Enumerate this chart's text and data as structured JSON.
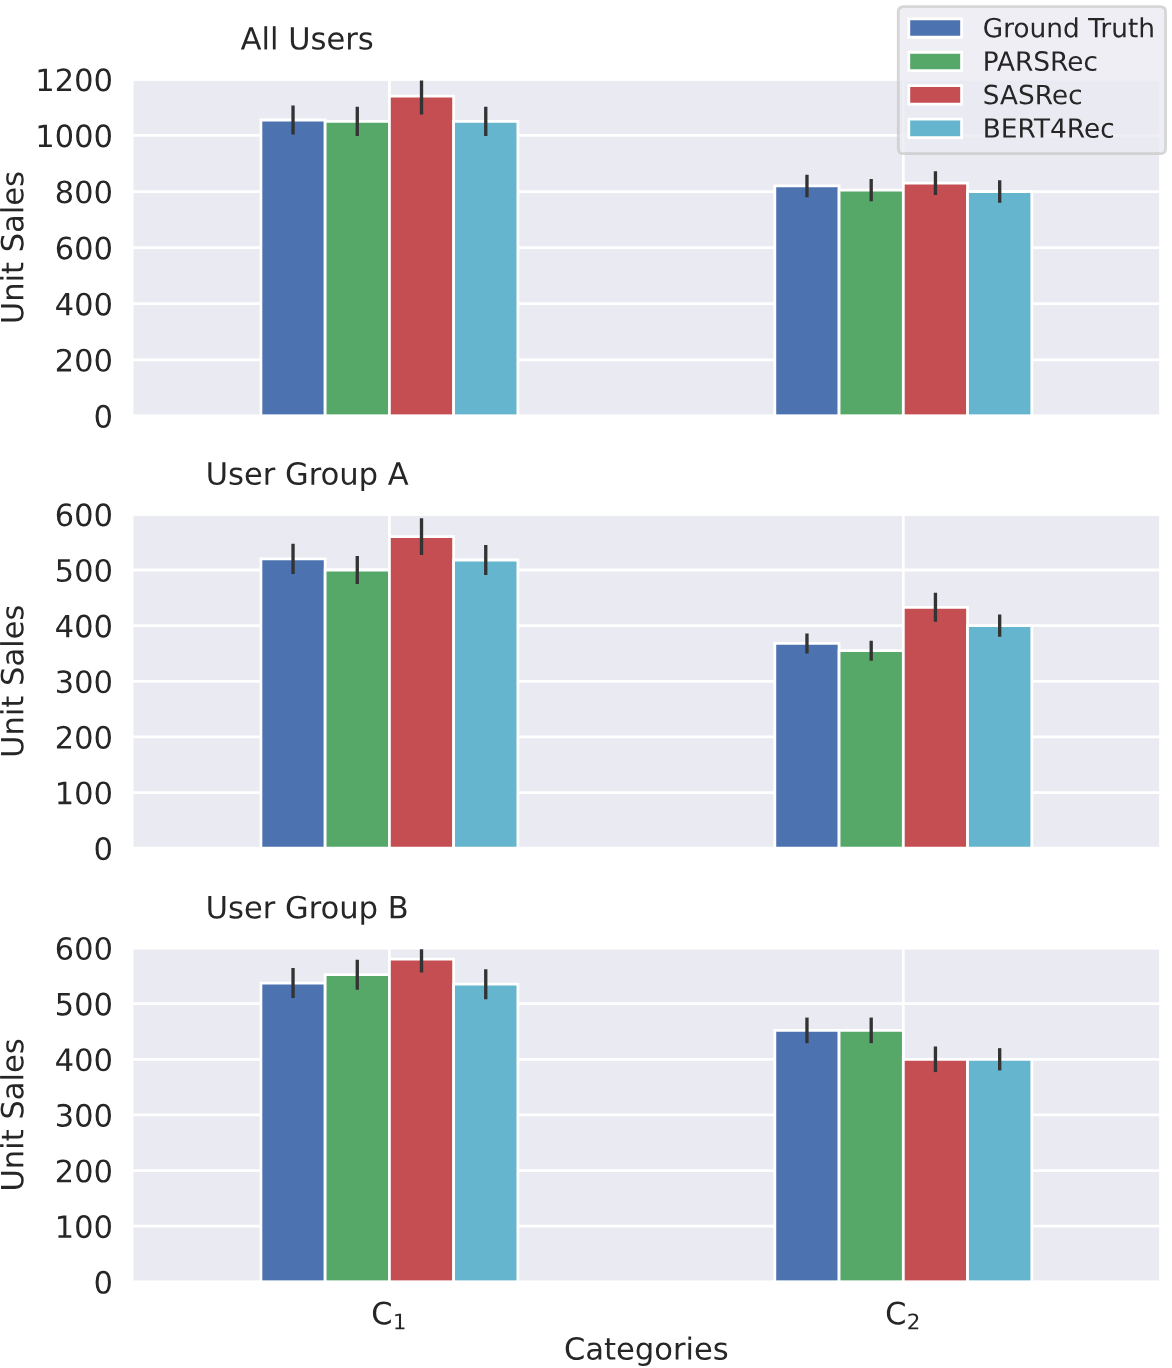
{
  "chart_data": [
    {
      "type": "bar",
      "title": "All Users",
      "ylabel": "Unit Sales",
      "categories": [
        null,
        null
      ],
      "ylim": [
        0,
        1200
      ],
      "yticks": [
        0,
        200,
        400,
        600,
        800,
        1000,
        1200
      ],
      "grid": true,
      "legend": "top right",
      "tick_labels": "y",
      "series": [
        {
          "name": "Ground Truth",
          "color": "#4c72b0",
          "values": [
            1055,
            820
          ],
          "errors": [
            52,
            40
          ]
        },
        {
          "name": "PARSRec",
          "color": "#55a868",
          "values": [
            1050,
            805
          ],
          "errors": [
            52,
            40
          ]
        },
        {
          "name": "SASRec",
          "color": "#c44e52",
          "values": [
            1140,
            830
          ],
          "errors": [
            65,
            42
          ]
        },
        {
          "name": "BERT4Rec",
          "color": "#64b5cd",
          "values": [
            1050,
            800
          ],
          "errors": [
            52,
            40
          ]
        }
      ]
    },
    {
      "type": "bar",
      "title": "User Group A",
      "ylabel": "Unit Sales",
      "categories": [
        null,
        null
      ],
      "ylim": [
        0,
        600
      ],
      "yticks": [
        0,
        100,
        200,
        300,
        400,
        500,
        600
      ],
      "grid": true,
      "tick_labels": "y",
      "series": [
        {
          "color": "#4c72b0",
          "values": [
            520,
            368
          ],
          "errors": [
            27,
            18
          ]
        },
        {
          "color": "#55a868",
          "values": [
            500,
            355
          ],
          "errors": [
            25,
            18
          ]
        },
        {
          "color": "#c44e52",
          "values": [
            560,
            433
          ],
          "errors": [
            33,
            26
          ]
        },
        {
          "color": "#64b5cd",
          "values": [
            518,
            400
          ],
          "errors": [
            27,
            20
          ]
        }
      ]
    },
    {
      "type": "bar",
      "title": "User Group B",
      "xlabel": "Categories",
      "ylabel": "Unit Sales",
      "categories": [
        "C$_{1}$",
        "C$_{2}$"
      ],
      "ylim": [
        0,
        600
      ],
      "yticks": [
        0,
        100,
        200,
        300,
        400,
        500,
        600
      ],
      "grid": true,
      "series": [
        {
          "color": "#4c72b0",
          "values": [
            537,
            452
          ],
          "errors": [
            27,
            23
          ]
        },
        {
          "color": "#55a868",
          "values": [
            552,
            452
          ],
          "errors": [
            27,
            23
          ]
        },
        {
          "color": "#c44e52",
          "values": [
            580,
            400
          ],
          "errors": [
            24,
            23
          ]
        },
        {
          "color": "#64b5cd",
          "values": [
            535,
            400
          ],
          "errors": [
            27,
            20
          ]
        }
      ]
    }
  ]
}
